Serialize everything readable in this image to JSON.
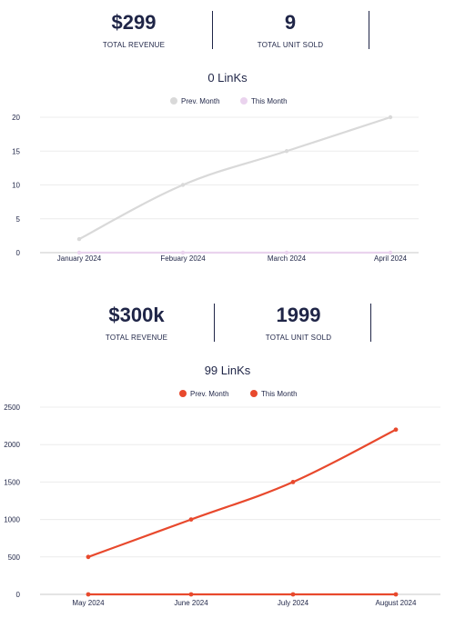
{
  "section1": {
    "revenue_value": "$299",
    "revenue_label": "TOTAL REVENUE",
    "units_value": "9",
    "units_label": "TOTAL UNIT SOLD"
  },
  "section2": {
    "revenue_value": "$300k",
    "revenue_label": "TOTAL REVENUE",
    "units_value": "1999",
    "units_label": "TOTAL UNIT SOLD"
  },
  "chart_data": [
    {
      "type": "line",
      "title": "0 LinKs",
      "categories": [
        "January 2024",
        "Febuary 2024",
        "March 2024",
        "April 2024"
      ],
      "yticks": [
        0,
        5,
        10,
        15,
        20
      ],
      "ylim": [
        0,
        20
      ],
      "legend_position": "top-center",
      "grid": true,
      "series": [
        {
          "name": "Prev. Month",
          "color": "#d9d9d9",
          "values": [
            2,
            10,
            15,
            20
          ]
        },
        {
          "name": "This Month",
          "color": "#ead3ee",
          "values": [
            0,
            0,
            0,
            0
          ]
        }
      ]
    },
    {
      "type": "line",
      "title": "99 LinKs",
      "categories": [
        "May 2024",
        "June 2024",
        "July 2024",
        "August 2024"
      ],
      "yticks": [
        0,
        500,
        1000,
        1500,
        2000,
        2500
      ],
      "ylim": [
        0,
        2500
      ],
      "legend_position": "top-center",
      "grid": true,
      "series": [
        {
          "name": "Prev. Month",
          "color": "#e8492d",
          "values": [
            500,
            1000,
            1500,
            2200
          ]
        },
        {
          "name": "This Month",
          "color": "#e8492d",
          "values": [
            0,
            0,
            0,
            0
          ]
        }
      ]
    }
  ]
}
